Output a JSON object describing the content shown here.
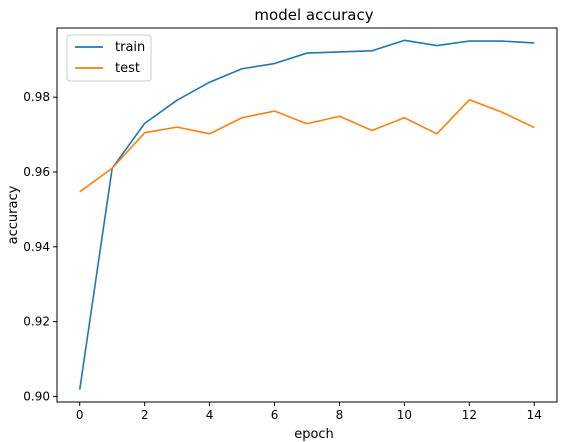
{
  "chart_data": {
    "type": "line",
    "title": "model accuracy",
    "xlabel": "epoch",
    "ylabel": "accuracy",
    "x": [
      0,
      1,
      2,
      3,
      4,
      5,
      6,
      7,
      8,
      9,
      10,
      11,
      12,
      13,
      14
    ],
    "xticks": [
      "0",
      "2",
      "4",
      "6",
      "8",
      "10",
      "12",
      "14"
    ],
    "xtick_values": [
      0,
      2,
      4,
      6,
      8,
      10,
      12,
      14
    ],
    "yticks": [
      "0.90",
      "0.92",
      "0.94",
      "0.96",
      "0.98"
    ],
    "ytick_values": [
      0.9,
      0.92,
      0.94,
      0.96,
      0.98
    ],
    "xlim": [
      -0.7,
      14.7
    ],
    "ylim": [
      0.8985,
      0.9985
    ],
    "legend_position": "top-left",
    "grid": false,
    "series": [
      {
        "name": "train",
        "color": "#1f77b4",
        "values": [
          0.9018,
          0.961,
          0.973,
          0.9792,
          0.984,
          0.9876,
          0.989,
          0.9918,
          0.9921,
          0.9924,
          0.9952,
          0.9938,
          0.995,
          0.995,
          0.9945
        ]
      },
      {
        "name": "test",
        "color": "#ff7f0e",
        "values": [
          0.9547,
          0.961,
          0.9705,
          0.972,
          0.9702,
          0.9745,
          0.9763,
          0.9729,
          0.9749,
          0.9711,
          0.9745,
          0.9702,
          0.9793,
          0.976,
          0.9719
        ]
      }
    ]
  }
}
